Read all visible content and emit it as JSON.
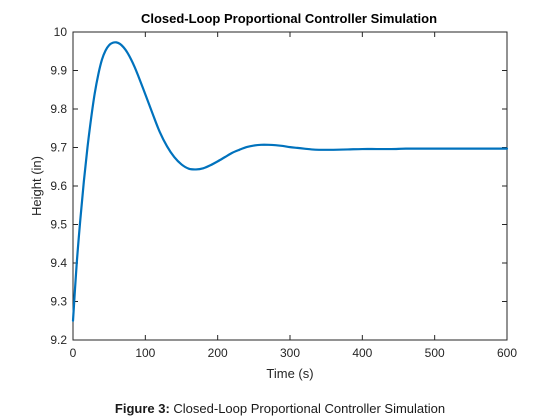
{
  "caption": {
    "label": "Figure 3:",
    "text": " Closed-Loop Proportional Controller Simulation"
  },
  "chart_data": {
    "type": "line",
    "title": "Closed-Loop Proportional Controller Simulation",
    "xlabel": "Time (s)",
    "ylabel": "Height (in)",
    "xlim": [
      0,
      600
    ],
    "ylim": [
      9.2,
      10
    ],
    "xticks": [
      "0",
      "100",
      "200",
      "300",
      "400",
      "500",
      "600"
    ],
    "yticks": [
      "9.2",
      "9.3",
      "9.4",
      "9.5",
      "9.6",
      "9.7",
      "9.8",
      "9.9",
      "10"
    ],
    "grid": false,
    "line_color": "#0072BD",
    "series": [
      {
        "x": [
          0,
          5,
          10,
          15,
          20,
          25,
          30,
          35,
          40,
          45,
          50,
          55,
          60,
          65,
          70,
          75,
          80,
          85,
          90,
          100,
          110,
          120,
          130,
          140,
          150,
          160,
          170,
          180,
          190,
          200,
          210,
          220,
          230,
          240,
          250,
          260,
          270,
          280,
          290,
          300,
          310,
          320,
          330,
          340,
          350,
          360,
          380,
          400,
          420,
          440,
          460,
          480,
          500,
          520,
          540,
          560,
          580,
          600
        ],
        "y": [
          9.25,
          9.395,
          9.51,
          9.612,
          9.7,
          9.775,
          9.84,
          9.89,
          9.928,
          9.952,
          9.966,
          9.972,
          9.973,
          9.969,
          9.96,
          9.947,
          9.93,
          9.91,
          9.887,
          9.838,
          9.788,
          9.74,
          9.703,
          9.675,
          9.656,
          9.645,
          9.643,
          9.646,
          9.654,
          9.664,
          9.675,
          9.686,
          9.694,
          9.701,
          9.705,
          9.707,
          9.707,
          9.706,
          9.704,
          9.701,
          9.699,
          9.697,
          9.695,
          9.694,
          9.694,
          9.694,
          9.695,
          9.696,
          9.696,
          9.696,
          9.697,
          9.697,
          9.697,
          9.697,
          9.697,
          9.697,
          9.697,
          9.697
        ]
      }
    ]
  }
}
